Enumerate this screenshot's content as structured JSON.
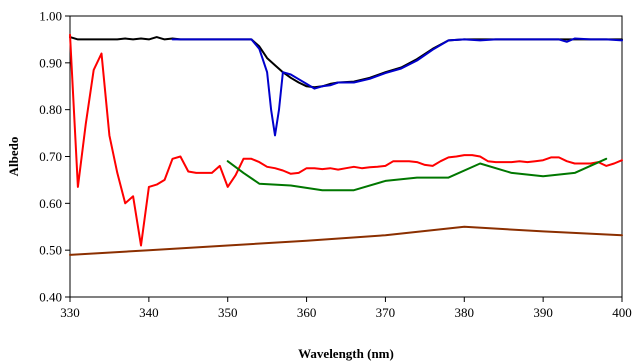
{
  "chart_data": {
    "type": "line",
    "title": "",
    "xlabel": "Wavelength (nm)",
    "ylabel": "Albedo",
    "xlim": [
      330,
      400
    ],
    "ylim": [
      0.4,
      1.0
    ],
    "xticks": [
      330,
      340,
      350,
      360,
      370,
      380,
      390,
      400
    ],
    "xtick_labels": [
      "330",
      "340",
      "350",
      "360",
      "370",
      "380",
      "390",
      "400"
    ],
    "yticks": [
      0.4,
      0.5,
      0.6,
      0.7,
      0.8,
      0.9,
      1.0
    ],
    "ytick_labels": [
      "0.40",
      "0.50",
      "0.60",
      "0.70",
      "0.80",
      "0.90",
      "1.00"
    ],
    "grid": false,
    "legend": "none",
    "series": [
      {
        "color": "#000000",
        "x": [
          330,
          331,
          332,
          333,
          334,
          335,
          336,
          337,
          338,
          339,
          340,
          341,
          342,
          343,
          344,
          346,
          348,
          350,
          352,
          353,
          354,
          355,
          356,
          357,
          358,
          359,
          360,
          361,
          362,
          363,
          364,
          366,
          368,
          370,
          372,
          374,
          376,
          378,
          380,
          385,
          390,
          395,
          400
        ],
        "y": [
          0.955,
          0.95,
          0.95,
          0.95,
          0.95,
          0.95,
          0.95,
          0.952,
          0.95,
          0.952,
          0.95,
          0.955,
          0.95,
          0.952,
          0.95,
          0.95,
          0.95,
          0.95,
          0.95,
          0.95,
          0.935,
          0.91,
          0.895,
          0.88,
          0.868,
          0.858,
          0.85,
          0.848,
          0.85,
          0.855,
          0.858,
          0.86,
          0.868,
          0.88,
          0.89,
          0.908,
          0.93,
          0.948,
          0.95,
          0.95,
          0.95,
          0.95,
          0.95
        ]
      },
      {
        "color": "#0000cc",
        "x": [
          343,
          344,
          346,
          348,
          350,
          352,
          353,
          354,
          355,
          355.5,
          356,
          356.5,
          357,
          358,
          359,
          360,
          361,
          362,
          363,
          364,
          366,
          368,
          370,
          372,
          374,
          376,
          378,
          380,
          382,
          384,
          386,
          388,
          390,
          392,
          393,
          394,
          396,
          398,
          400
        ],
        "y": [
          0.95,
          0.95,
          0.95,
          0.95,
          0.95,
          0.95,
          0.95,
          0.93,
          0.88,
          0.8,
          0.745,
          0.8,
          0.88,
          0.875,
          0.865,
          0.855,
          0.845,
          0.85,
          0.852,
          0.858,
          0.858,
          0.866,
          0.878,
          0.888,
          0.905,
          0.928,
          0.948,
          0.95,
          0.948,
          0.95,
          0.95,
          0.95,
          0.95,
          0.95,
          0.945,
          0.952,
          0.95,
          0.95,
          0.948
        ]
      },
      {
        "color": "#ff0000",
        "x": [
          330,
          331,
          332,
          333,
          334,
          335,
          336,
          337,
          338,
          339,
          340,
          341,
          342,
          343,
          344,
          345,
          346,
          347,
          348,
          349,
          350,
          351,
          352,
          353,
          354,
          355,
          356,
          357,
          358,
          359,
          360,
          361,
          362,
          363,
          364,
          365,
          366,
          367,
          368,
          369,
          370,
          371,
          372,
          373,
          374,
          375,
          376,
          377,
          378,
          379,
          380,
          381,
          382,
          383,
          384,
          385,
          386,
          387,
          388,
          389,
          390,
          391,
          392,
          393,
          394,
          395,
          396,
          397,
          398,
          399,
          400
        ],
        "y": [
          0.96,
          0.635,
          0.77,
          0.885,
          0.92,
          0.745,
          0.665,
          0.6,
          0.615,
          0.51,
          0.635,
          0.64,
          0.65,
          0.695,
          0.7,
          0.668,
          0.665,
          0.665,
          0.665,
          0.68,
          0.635,
          0.66,
          0.695,
          0.695,
          0.688,
          0.678,
          0.675,
          0.67,
          0.663,
          0.665,
          0.675,
          0.675,
          0.673,
          0.675,
          0.672,
          0.675,
          0.678,
          0.675,
          0.677,
          0.678,
          0.68,
          0.69,
          0.69,
          0.69,
          0.688,
          0.682,
          0.68,
          0.69,
          0.698,
          0.7,
          0.703,
          0.703,
          0.7,
          0.69,
          0.688,
          0.688,
          0.688,
          0.69,
          0.688,
          0.69,
          0.692,
          0.698,
          0.698,
          0.69,
          0.685,
          0.685,
          0.685,
          0.688,
          0.68,
          0.685,
          0.692
        ]
      },
      {
        "color": "#007700",
        "x": [
          350,
          352,
          354,
          358,
          362,
          366,
          370,
          374,
          378,
          382,
          386,
          390,
          394,
          398
        ],
        "y": [
          0.69,
          0.665,
          0.642,
          0.638,
          0.628,
          0.628,
          0.648,
          0.655,
          0.655,
          0.685,
          0.665,
          0.658,
          0.665,
          0.695
        ]
      },
      {
        "color": "#8b2f00",
        "x": [
          330,
          340,
          350,
          360,
          370,
          380,
          390,
          400
        ],
        "y": [
          0.49,
          0.5,
          0.51,
          0.52,
          0.532,
          0.55,
          0.54,
          0.532
        ]
      }
    ]
  }
}
